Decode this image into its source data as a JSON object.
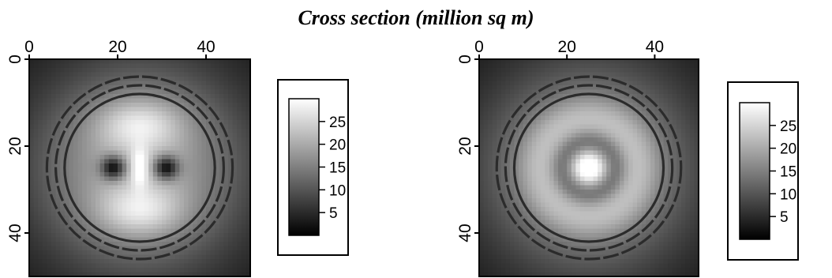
{
  "title": "Cross section (million sq m)",
  "chart_data": [
    {
      "type": "heatmap",
      "title": "",
      "xlabel": "",
      "ylabel": "",
      "x_range": [
        0,
        50
      ],
      "y_range": [
        0,
        50
      ],
      "x_ticks": [
        "0",
        "20",
        "40"
      ],
      "y_ticks": [
        "0",
        "20",
        "40"
      ],
      "colormap": "grayscale",
      "colorbar": {
        "range": [
          0,
          30
        ],
        "ticks": [
          "25",
          "20",
          "15",
          "10",
          "5"
        ]
      },
      "pattern": "two bright lobes above and below center, dark spots left and right of center, value falls off toward edges",
      "overlay_rings_dashed": [
        {
          "cx": 25,
          "cy": 25,
          "r": 21
        },
        {
          "cx": 25,
          "cy": 25,
          "r": 19
        }
      ],
      "overlay_ring_solid": {
        "cx": 25,
        "cy": 25,
        "r": 17
      }
    },
    {
      "type": "heatmap",
      "title": "",
      "xlabel": "",
      "ylabel": "",
      "x_range": [
        0,
        50
      ],
      "y_range": [
        0,
        50
      ],
      "x_ticks": [
        "0",
        "20",
        "40"
      ],
      "y_ticks": [
        "0",
        "20",
        "40"
      ],
      "colormap": "grayscale",
      "colorbar": {
        "range": [
          0,
          30
        ],
        "ticks": [
          "25",
          "20",
          "15",
          "10",
          "5"
        ]
      },
      "pattern": "bright central peak, dark ring around it, bright annulus, value falls off toward edges",
      "overlay_rings_dashed": [
        {
          "cx": 25,
          "cy": 25,
          "r": 21
        },
        {
          "cx": 25,
          "cy": 25,
          "r": 19
        }
      ],
      "overlay_ring_solid": {
        "cx": 25,
        "cy": 25,
        "r": 17
      }
    }
  ]
}
